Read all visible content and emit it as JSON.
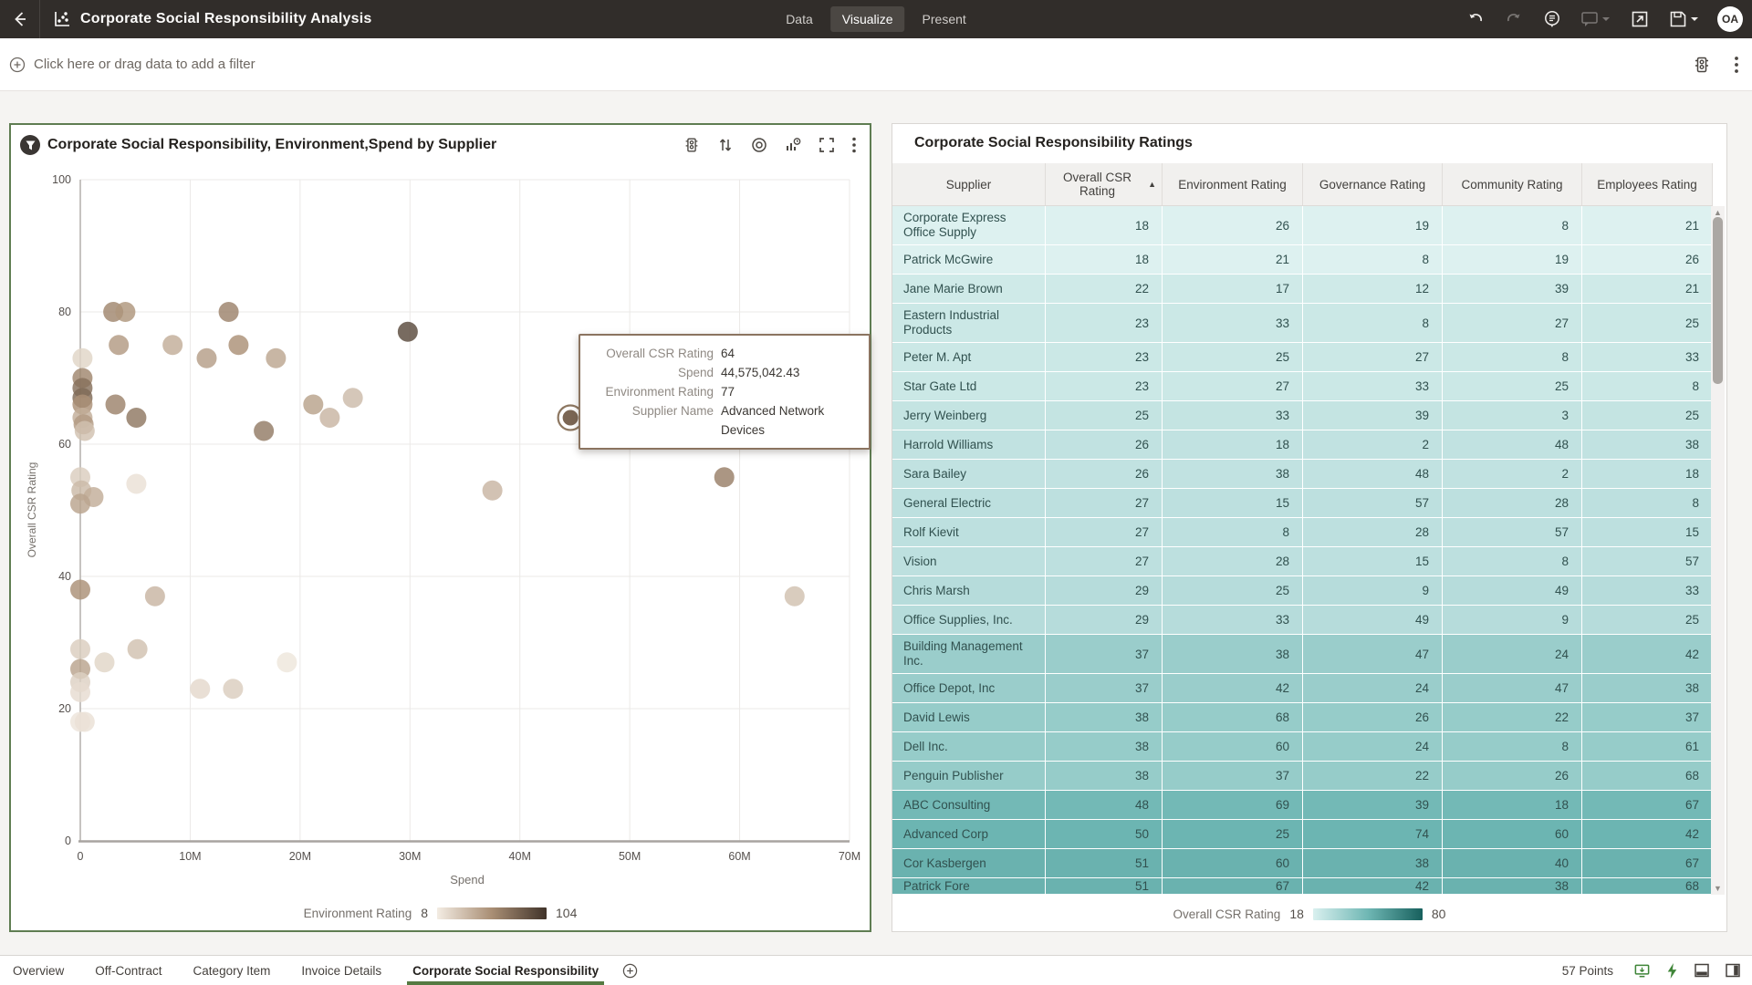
{
  "app": {
    "title": "Corporate Social Responsibility Analysis",
    "nav_tabs": [
      "Data",
      "Visualize",
      "Present"
    ],
    "active_nav_tab": "Visualize",
    "avatar": "OA"
  },
  "filter_bar": {
    "prompt": "Click here or drag data to add a filter"
  },
  "chart_panel": {
    "title": "Corporate Social Responsibility, Environment,Spend by Supplier",
    "legend": {
      "label": "Environment Rating",
      "min": "8",
      "max": "104"
    }
  },
  "chart_data": {
    "type": "scatter",
    "title": "Corporate Social Responsibility, Environment,Spend by Supplier",
    "xlabel": "Spend",
    "ylabel": "Overall CSR Rating",
    "xlim": [
      0,
      70000000
    ],
    "ylim": [
      0,
      100
    ],
    "x_tick_labels": [
      "0",
      "10M",
      "20M",
      "30M",
      "40M",
      "50M",
      "60M",
      "70M"
    ],
    "y_tick_labels": [
      "0",
      "20",
      "40",
      "60",
      "80",
      "100"
    ],
    "grid": true,
    "color_by": "Environment Rating",
    "color_range": [
      8,
      104
    ],
    "color_gradient": [
      "#f3ece3",
      "#a98e74",
      "#40332a"
    ],
    "points": [
      {
        "x": 0.2,
        "y": 73,
        "env": 20
      },
      {
        "x": 0.2,
        "y": 70,
        "env": 60
      },
      {
        "x": 0.2,
        "y": 68.5,
        "env": 72
      },
      {
        "x": 0.2,
        "y": 67,
        "env": 75
      },
      {
        "x": 0.2,
        "y": 66,
        "env": 55
      },
      {
        "x": 0.2,
        "y": 64,
        "env": 40
      },
      {
        "x": 0.3,
        "y": 63,
        "env": 50
      },
      {
        "x": 0.4,
        "y": 62,
        "env": 30
      },
      {
        "x": 3.0,
        "y": 80,
        "env": 60
      },
      {
        "x": 4.1,
        "y": 80,
        "env": 52
      },
      {
        "x": 13.5,
        "y": 80,
        "env": 62
      },
      {
        "x": 29.8,
        "y": 77,
        "env": 92
      },
      {
        "x": 3.5,
        "y": 75,
        "env": 50
      },
      {
        "x": 8.4,
        "y": 75,
        "env": 40
      },
      {
        "x": 14.4,
        "y": 75,
        "env": 55
      },
      {
        "x": 11.5,
        "y": 73,
        "env": 48
      },
      {
        "x": 17.8,
        "y": 73,
        "env": 44
      },
      {
        "x": 3.2,
        "y": 66,
        "env": 62
      },
      {
        "x": 5.1,
        "y": 64,
        "env": 68
      },
      {
        "x": 16.7,
        "y": 62,
        "env": 66
      },
      {
        "x": 21.2,
        "y": 66,
        "env": 46
      },
      {
        "x": 22.7,
        "y": 64,
        "env": 36
      },
      {
        "x": 24.8,
        "y": 67,
        "env": 33
      },
      {
        "x": 44.6,
        "y": 64,
        "env": 77,
        "highlight": true,
        "supplier": "Advanced Network Devices"
      },
      {
        "x": 52.4,
        "y": 63,
        "env": 38
      },
      {
        "x": 58.6,
        "y": 55,
        "env": 64
      },
      {
        "x": 37.5,
        "y": 53,
        "env": 36
      },
      {
        "x": 0,
        "y": 55,
        "env": 24
      },
      {
        "x": 0.1,
        "y": 53,
        "env": 34
      },
      {
        "x": 1.2,
        "y": 52,
        "env": 40
      },
      {
        "x": 5.1,
        "y": 54,
        "env": 14
      },
      {
        "x": 0,
        "y": 51,
        "env": 45
      },
      {
        "x": 0,
        "y": 38,
        "env": 55
      },
      {
        "x": 6.8,
        "y": 37,
        "env": 36
      },
      {
        "x": 0,
        "y": 29,
        "env": 24
      },
      {
        "x": 2.2,
        "y": 27,
        "env": 20
      },
      {
        "x": 5.2,
        "y": 29,
        "env": 30
      },
      {
        "x": 18.8,
        "y": 27,
        "env": 11
      },
      {
        "x": 0,
        "y": 26,
        "env": 45
      },
      {
        "x": 0,
        "y": 24,
        "env": 22
      },
      {
        "x": 0,
        "y": 22.5,
        "env": 16
      },
      {
        "x": 10.9,
        "y": 23,
        "env": 18
      },
      {
        "x": 13.9,
        "y": 23,
        "env": 24
      },
      {
        "x": 0,
        "y": 18,
        "env": 12
      },
      {
        "x": 0.4,
        "y": 18,
        "env": 14
      },
      {
        "x": 65,
        "y": 37,
        "env": 30
      }
    ]
  },
  "tooltip": {
    "rows": [
      {
        "label": "Overall CSR Rating",
        "value": "64"
      },
      {
        "label": "Spend",
        "value": "44,575,042.43"
      },
      {
        "label": "Environment Rating",
        "value": "77"
      },
      {
        "label": "Supplier Name",
        "value": "Advanced Network Devices"
      }
    ]
  },
  "table_panel": {
    "title": "Corporate Social Responsibility Ratings",
    "columns": [
      "Supplier",
      "Overall CSR Rating",
      "Environment Rating",
      "Governance Rating",
      "Community Rating",
      "Employees Rating"
    ],
    "sorted_column": "Overall CSR Rating",
    "sort_direction": "asc",
    "rows": [
      {
        "supplier": "Corporate Express Office Supply",
        "values": [
          18,
          26,
          19,
          8,
          21
        ],
        "tall": true
      },
      {
        "supplier": "Patrick McGwire",
        "values": [
          18,
          21,
          8,
          19,
          26
        ]
      },
      {
        "supplier": "Jane Marie Brown",
        "values": [
          22,
          17,
          12,
          39,
          21
        ]
      },
      {
        "supplier": "Eastern Industrial Products",
        "values": [
          23,
          33,
          8,
          27,
          25
        ],
        "tall": true
      },
      {
        "supplier": "Peter M. Apt",
        "values": [
          23,
          25,
          27,
          8,
          33
        ]
      },
      {
        "supplier": "Star Gate Ltd",
        "values": [
          23,
          27,
          33,
          25,
          8
        ]
      },
      {
        "supplier": "Jerry Weinberg",
        "values": [
          25,
          33,
          39,
          3,
          25
        ]
      },
      {
        "supplier": "Harrold Williams",
        "values": [
          26,
          18,
          2,
          48,
          38
        ]
      },
      {
        "supplier": "Sara Bailey",
        "values": [
          26,
          38,
          48,
          2,
          18
        ]
      },
      {
        "supplier": "General Electric",
        "values": [
          27,
          15,
          57,
          28,
          8
        ]
      },
      {
        "supplier": "Rolf Kievit",
        "values": [
          27,
          8,
          28,
          57,
          15
        ]
      },
      {
        "supplier": "Vision",
        "values": [
          27,
          28,
          15,
          8,
          57
        ]
      },
      {
        "supplier": "Chris Marsh",
        "values": [
          29,
          25,
          9,
          49,
          33
        ]
      },
      {
        "supplier": "Office Supplies, Inc.",
        "values": [
          29,
          33,
          49,
          9,
          25
        ]
      },
      {
        "supplier": "Building Management Inc.",
        "values": [
          37,
          38,
          47,
          24,
          42
        ],
        "tall": true
      },
      {
        "supplier": "Office Depot, Inc",
        "values": [
          37,
          42,
          24,
          47,
          38
        ]
      },
      {
        "supplier": "David Lewis",
        "values": [
          38,
          68,
          26,
          22,
          37
        ]
      },
      {
        "supplier": "Dell Inc.",
        "values": [
          38,
          60,
          24,
          8,
          61
        ]
      },
      {
        "supplier": "Penguin Publisher",
        "values": [
          38,
          37,
          22,
          26,
          68
        ]
      },
      {
        "supplier": "ABC Consulting",
        "values": [
          48,
          69,
          39,
          18,
          67
        ]
      },
      {
        "supplier": "Advanced Corp",
        "values": [
          50,
          25,
          74,
          60,
          42
        ]
      },
      {
        "supplier": "Cor Kasbergen",
        "values": [
          51,
          60,
          38,
          40,
          67
        ]
      },
      {
        "supplier": "Patrick Fore",
        "values": [
          51,
          67,
          42,
          38,
          68
        ],
        "clipped": true
      }
    ],
    "legend": {
      "label": "Overall CSR Rating",
      "min": "18",
      "max": "80"
    },
    "csr_color_range": [
      18,
      80
    ],
    "csr_color_gradient": [
      "#ddf1f0",
      "#6fb7b4",
      "#1b6b68"
    ]
  },
  "canvas_bar": {
    "tabs": [
      "Overview",
      "Off-Contract",
      "Category Item",
      "Invoice Details",
      "Corporate Social Responsibility"
    ],
    "active_tab": "Corporate Social Responsibility",
    "points_label": "57 Points"
  },
  "colors": {
    "accent_green": "#557a42",
    "panel_selected_border": "#5f7d52",
    "topbar_bg": "#312d2a",
    "status_icon_green": "#3f8538",
    "env_gradient": [
      "#f3ece3",
      "#a98e74",
      "#40332a"
    ],
    "csr_gradient": [
      "#d9f0ef",
      "#6fb7b4",
      "#17605d"
    ]
  }
}
